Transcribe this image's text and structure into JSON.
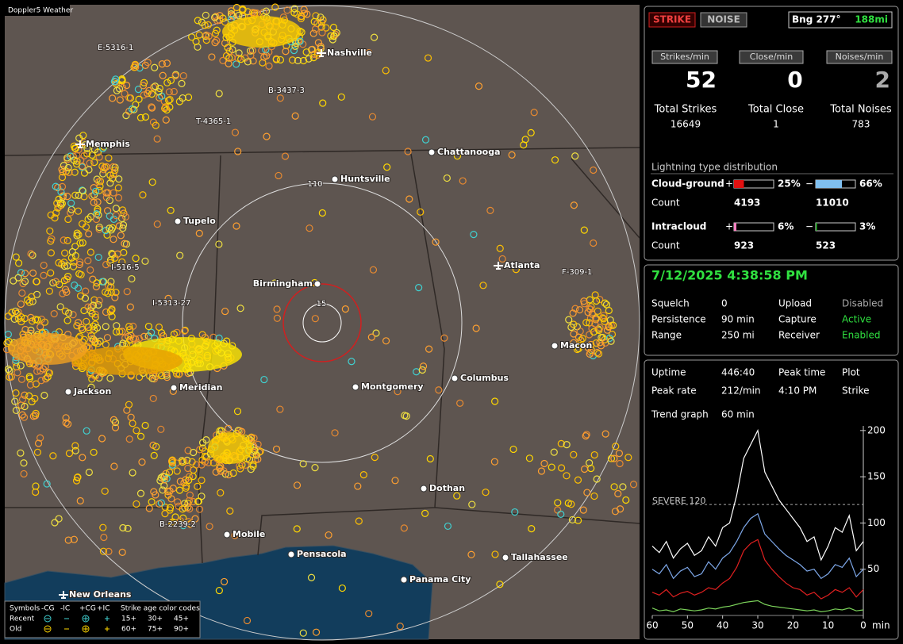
{
  "window": {
    "title": "Doppler5 Weather"
  },
  "map": {
    "cities": [
      "Nashville",
      "Memphis",
      "Chattanooga",
      "Huntsville",
      "Tupelo",
      "Atlanta",
      "Birmingham",
      "Macon",
      "Jackson",
      "Meridian",
      "Montgomery",
      "Columbus",
      "Dothan",
      "Mobile",
      "Pensacola",
      "Tallahassee",
      "Panama City",
      "New Orleans"
    ],
    "range_labels": [
      "15",
      "110"
    ],
    "storm_labels": [
      "E-5316-1",
      "B-3437-3",
      "T-4365-1",
      "I-516-5",
      "I-5313-27",
      "F-309-1",
      "B-2239-2"
    ],
    "legend": {
      "symbols": "Symbols",
      "columns": [
        "-CG",
        "-IC",
        "+CG",
        "+IC"
      ],
      "age_title": "Strike age color codes",
      "recent": "Recent",
      "old": "Old",
      "recent_ages": [
        "15+",
        "30+",
        "45+"
      ],
      "old_ages": [
        "60+",
        "75+",
        "90+"
      ]
    }
  },
  "status": {
    "strike": "STRIKE",
    "noise": "NOISE",
    "bearing": "Bng 277°",
    "distance": "188mi"
  },
  "rates": {
    "headers": [
      "Strikes/min",
      "Close/min",
      "Noises/min"
    ],
    "values": [
      52,
      0,
      2
    ],
    "total_labels": [
      "Total Strikes",
      "Total Close",
      "Total Noises"
    ],
    "totals": [
      16649,
      1,
      783
    ]
  },
  "distribution": {
    "title": "Lightning type distribution",
    "plus": "+",
    "minus": "−",
    "count_label": "Count",
    "rows": [
      {
        "name": "Cloud-ground",
        "pos": {
          "value": 25,
          "label": "25%"
        },
        "neg": {
          "value": 66,
          "label": "66%"
        },
        "pos_count": 4193,
        "neg_count": 11010
      },
      {
        "name": "Intracloud",
        "pos": {
          "value": 6,
          "label": "6%"
        },
        "neg": {
          "value": 3,
          "label": "3%"
        },
        "pos_count": 923,
        "neg_count": 523
      }
    ]
  },
  "clock": "7/12/2025 4:38:58 PM",
  "settings": [
    [
      "Squelch",
      0,
      "Upload",
      "Disabled"
    ],
    [
      "Persistence",
      "90 min",
      "Capture",
      "Active"
    ],
    [
      "Range",
      "250 mi",
      "Receiver",
      "Enabled"
    ]
  ],
  "stats": {
    "uptime_label": "Uptime",
    "uptime": "446:40",
    "peak_time_label": "Peak time",
    "peak_time": "4:10 PM",
    "plot_label": "Plot",
    "plot": "Strike",
    "peak_rate_label": "Peak rate",
    "peak_rate": "212/min",
    "trend_label": "Trend graph",
    "trend": "60 min"
  },
  "chart_data": {
    "type": "line",
    "x": [
      60,
      58,
      56,
      54,
      52,
      50,
      48,
      46,
      44,
      42,
      40,
      38,
      36,
      34,
      32,
      30,
      28,
      26,
      24,
      22,
      20,
      18,
      16,
      14,
      12,
      10,
      8,
      6,
      4,
      2,
      0
    ],
    "xlim": [
      60,
      0
    ],
    "ylim": [
      0,
      205
    ],
    "xticks": [
      60,
      50,
      40,
      30,
      20,
      10,
      0
    ],
    "yticks": [
      50,
      100,
      150,
      200
    ],
    "x_unit": "min",
    "threshold": {
      "value": 120,
      "label": "SEVERE 120"
    },
    "series": [
      {
        "color": "#ffffff",
        "values": [
          75,
          68,
          80,
          62,
          72,
          78,
          65,
          70,
          85,
          75,
          95,
          100,
          130,
          170,
          185,
          200,
          155,
          140,
          125,
          115,
          105,
          95,
          80,
          85,
          60,
          75,
          95,
          90,
          108,
          70,
          80
        ]
      },
      {
        "color": "#7da7e8",
        "values": [
          50,
          45,
          55,
          40,
          48,
          52,
          42,
          45,
          58,
          50,
          62,
          68,
          80,
          95,
          105,
          110,
          88,
          80,
          72,
          65,
          60,
          55,
          48,
          50,
          40,
          45,
          55,
          52,
          62,
          42,
          50
        ]
      },
      {
        "color": "#e02020",
        "values": [
          25,
          22,
          28,
          20,
          24,
          26,
          22,
          25,
          30,
          28,
          35,
          40,
          52,
          70,
          78,
          82,
          60,
          50,
          42,
          35,
          30,
          28,
          22,
          25,
          18,
          22,
          28,
          25,
          30,
          20,
          28
        ]
      },
      {
        "color": "#7bd25a",
        "values": [
          8,
          5,
          6,
          4,
          7,
          6,
          5,
          6,
          8,
          7,
          9,
          10,
          12,
          14,
          15,
          16,
          12,
          10,
          9,
          8,
          7,
          6,
          5,
          6,
          4,
          5,
          7,
          6,
          8,
          5,
          6
        ]
      }
    ]
  }
}
